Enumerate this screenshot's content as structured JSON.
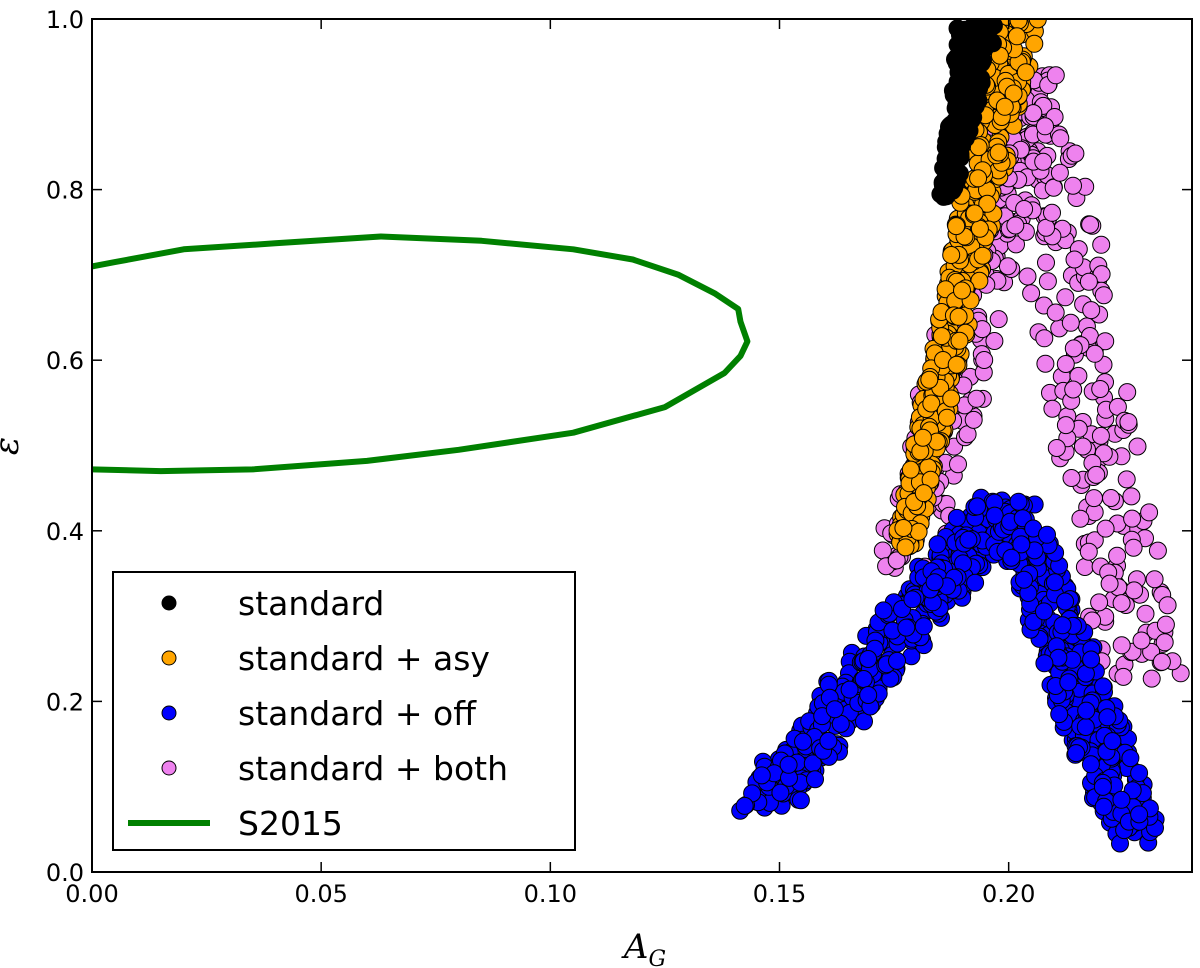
{
  "chart_data": {
    "type": "scatter",
    "xlabel": "A",
    "xlabel_sub": "G",
    "ylabel": "ε",
    "xlim": [
      0.0,
      0.24
    ],
    "ylim": [
      0.0,
      1.0
    ],
    "x_ticks": [
      0.0,
      0.05,
      0.1,
      0.15,
      0.2
    ],
    "x_tick_labels": [
      "0.00",
      "0.05",
      "0.10",
      "0.15",
      "0.20"
    ],
    "y_ticks": [
      0.0,
      0.2,
      0.4,
      0.6,
      0.8,
      1.0
    ],
    "y_tick_labels": [
      "0.0",
      "0.2",
      "0.4",
      "0.6",
      "0.8",
      "1.0"
    ],
    "grid": false,
    "legend_position": "lower-left",
    "series": [
      {
        "name": "standard",
        "kind": "scatter",
        "color": "#000000",
        "region": {
          "x_left": [
            [
              0.79,
              0.185
            ],
            [
              1.0,
              0.189
            ]
          ],
          "x_right": [
            [
              0.79,
              0.188
            ],
            [
              1.0,
              0.198
            ]
          ]
        },
        "density": 160
      },
      {
        "name": "standard + asy",
        "kind": "scatter",
        "color": "#ffa500",
        "region": {
          "x_left": [
            [
              0.38,
              0.175
            ],
            [
              1.0,
              0.197
            ]
          ],
          "x_right": [
            [
              0.38,
              0.18
            ],
            [
              1.0,
              0.207
            ]
          ]
        },
        "density": 500
      },
      {
        "name": "standard + off",
        "kind": "scatter",
        "color": "#0000ff",
        "arms": [
          {
            "from": [
              0.147,
              0.08
            ],
            "to": [
              0.198,
              0.43
            ],
            "width": 0.006
          },
          {
            "from": [
              0.2,
              0.43
            ],
            "to": [
              0.228,
              0.04
            ],
            "width": 0.006
          }
        ],
        "density": 700
      },
      {
        "name": "standard + both",
        "kind": "scatter",
        "color": "#ee82ee",
        "arms": [
          {
            "from": [
              0.178,
              0.36
            ],
            "to": [
              0.205,
              0.93
            ],
            "width": 0.007
          },
          {
            "from": [
              0.205,
              0.9
            ],
            "to": [
              0.23,
              0.21
            ],
            "width": 0.009
          }
        ],
        "density": 450
      },
      {
        "name": "S2015",
        "kind": "line",
        "color": "#008000",
        "x": [
          0.0,
          0.005,
          0.02,
          0.04,
          0.063,
          0.085,
          0.105,
          0.118,
          0.128,
          0.136,
          0.141,
          0.1415,
          0.143,
          0.1415,
          0.138,
          0.125,
          0.105,
          0.08,
          0.06,
          0.035,
          0.015,
          0.0
        ],
        "y": [
          0.71,
          0.715,
          0.73,
          0.737,
          0.745,
          0.74,
          0.73,
          0.718,
          0.7,
          0.678,
          0.66,
          0.645,
          0.622,
          0.605,
          0.585,
          0.545,
          0.515,
          0.495,
          0.482,
          0.472,
          0.47,
          0.472
        ]
      }
    ]
  }
}
